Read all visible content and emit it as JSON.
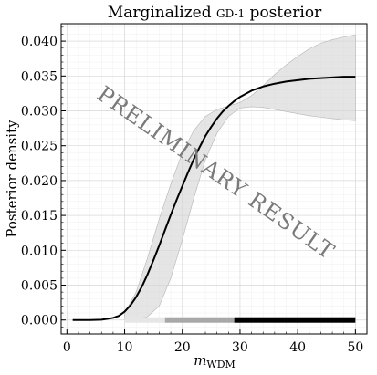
{
  "chart_data": {
    "type": "line",
    "title_main": "Marginalized ",
    "title_sc": "GD-1",
    "title_end": " posterior",
    "xlabel_main": "m",
    "xlabel_sub": "WDM",
    "ylabel": "Posterior density",
    "xlim": [
      -1,
      52
    ],
    "ylim": [
      -0.002,
      0.0425
    ],
    "x_ticks": [
      0,
      10,
      20,
      30,
      40,
      50
    ],
    "x_tick_labels": [
      "0",
      "10",
      "20",
      "30",
      "40",
      "50"
    ],
    "y_ticks": [
      0.0,
      0.005,
      0.01,
      0.015,
      0.02,
      0.025,
      0.03,
      0.035,
      0.04
    ],
    "y_tick_labels": [
      "0.000",
      "0.005",
      "0.010",
      "0.015",
      "0.020",
      "0.025",
      "0.030",
      "0.035",
      "0.040"
    ],
    "grid": true,
    "watermark": "PRELIMINARY RESULT",
    "series": [
      {
        "x": [
          1,
          4,
          6,
          8,
          9,
          10,
          11,
          12,
          13,
          14,
          15,
          16,
          17,
          18,
          19,
          20,
          21,
          22,
          23,
          24,
          25,
          26,
          27,
          28,
          29,
          30,
          32,
          34,
          36,
          38,
          40,
          42,
          44,
          46,
          48,
          50
        ],
        "y": [
          0.0,
          0.0,
          5e-05,
          0.0003,
          0.0006,
          0.0012,
          0.0021,
          0.0033,
          0.0048,
          0.0066,
          0.0086,
          0.0107,
          0.0129,
          0.0151,
          0.0172,
          0.0192,
          0.0212,
          0.0231,
          0.0248,
          0.0264,
          0.0277,
          0.0289,
          0.0299,
          0.0307,
          0.0314,
          0.032,
          0.0329,
          0.0335,
          0.0339,
          0.0342,
          0.0344,
          0.0346,
          0.0347,
          0.0348,
          0.0349,
          0.0349
        ],
        "color": "#000000"
      }
    ],
    "band": {
      "x": [
        10,
        12,
        14,
        16,
        18,
        20,
        22,
        24,
        26,
        28,
        30,
        32,
        34,
        36,
        38,
        40,
        42,
        44,
        46,
        48,
        50
      ],
      "lower": [
        0.0,
        0.0001,
        0.0005,
        0.002,
        0.006,
        0.0115,
        0.0175,
        0.023,
        0.0268,
        0.0292,
        0.0304,
        0.0306,
        0.0305,
        0.0302,
        0.0299,
        0.0296,
        0.0293,
        0.0291,
        0.0289,
        0.0287,
        0.0286
      ],
      "upper": [
        0.001,
        0.004,
        0.009,
        0.0145,
        0.0195,
        0.024,
        0.0272,
        0.0292,
        0.0302,
        0.0307,
        0.0312,
        0.0322,
        0.0336,
        0.0352,
        0.0366,
        0.0378,
        0.0389,
        0.0397,
        0.0402,
        0.0406,
        0.0409
      ],
      "color": "#d3d3d3"
    },
    "credible_bars": [
      {
        "x_start": 10,
        "x_end": 17,
        "color": "#e6e6e6"
      },
      {
        "x_start": 17,
        "x_end": 29,
        "color": "#a8a8a8"
      },
      {
        "x_start": 29,
        "x_end": 50,
        "color": "#000000"
      }
    ],
    "credible_bar_y": 0.0
  }
}
